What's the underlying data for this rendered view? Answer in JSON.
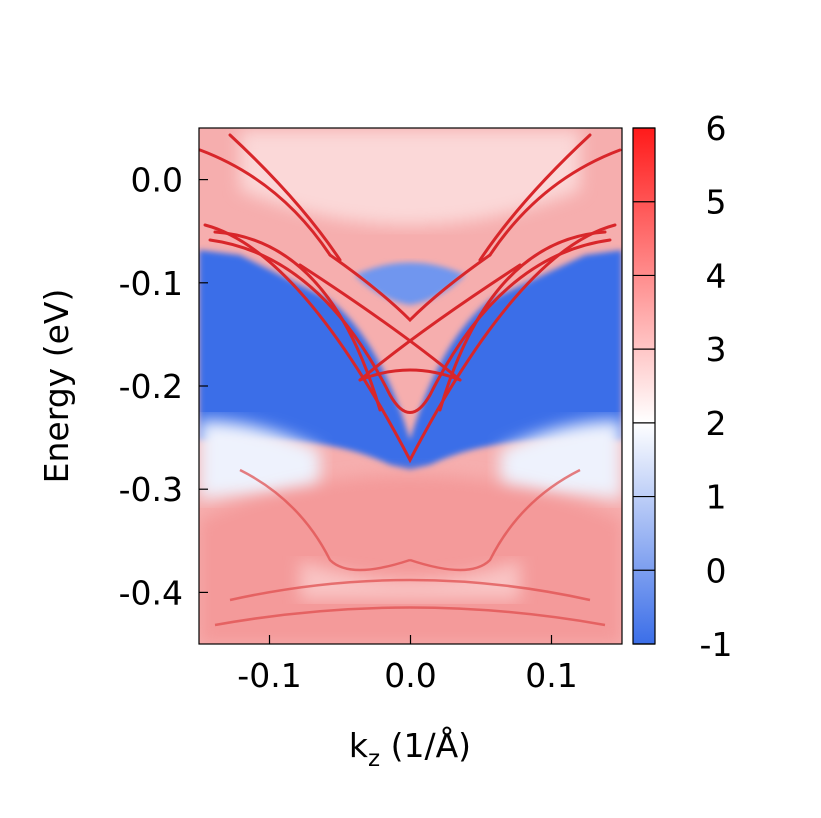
{
  "chart_data": {
    "type": "heatmap",
    "title": "",
    "xlabel": "k",
    "xlabel_subscript": "z",
    "xlabel_unit": " (1/Å)",
    "ylabel": "Energy (eV)",
    "xlim": [
      -0.15,
      0.15
    ],
    "ylim": [
      -0.45,
      0.05
    ],
    "x_ticks": [
      -0.1,
      0.0,
      0.1
    ],
    "x_tick_labels": [
      "-0.1",
      "0.0",
      "0.1"
    ],
    "y_ticks": [
      0.0,
      -0.1,
      -0.2,
      -0.3,
      -0.4
    ],
    "y_tick_labels": [
      "0.0",
      "-0.1",
      "-0.2",
      "-0.3",
      "-0.4"
    ],
    "colorbar": {
      "min": -1,
      "max": 6,
      "ticks": [
        6,
        5,
        4,
        3,
        2,
        1,
        0,
        -1
      ],
      "tick_labels": [
        "6",
        "5",
        "4",
        "3",
        "2",
        "1",
        "0",
        "-1"
      ],
      "colormap": [
        "#3b6ee8",
        "#ffffff",
        "#ff1a1a"
      ]
    },
    "features": {
      "bulk_gap_top_edge_energy": -0.07,
      "bulk_gap_bottom_edge_energy": -0.25,
      "dirac_point": {
        "k": 0.0,
        "energy": -0.265
      },
      "surface_state_crossings": [
        {
          "k": 0.0,
          "energy": -0.135
        },
        {
          "k": 0.0,
          "energy": -0.19
        },
        {
          "k": -0.02,
          "energy": -0.215
        },
        {
          "k": 0.02,
          "energy": -0.215
        }
      ]
    }
  }
}
